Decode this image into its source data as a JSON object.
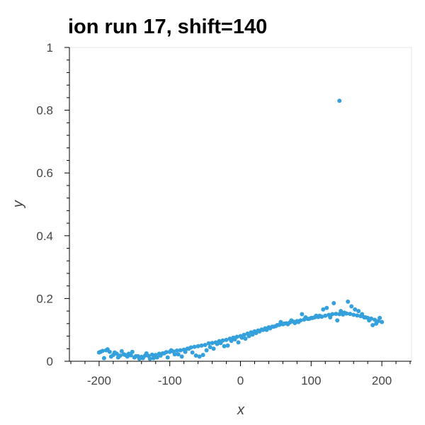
{
  "chart_data": {
    "type": "scatter",
    "title": "ion run 17, shift=140",
    "xlabel": "x",
    "ylabel": "y",
    "xlim": [
      -242,
      242
    ],
    "ylim": [
      0,
      1
    ],
    "x_ticks": [
      -200,
      -100,
      0,
      100,
      200
    ],
    "x_tick_labels": [
      "-200",
      "-100",
      "0",
      "100",
      "200"
    ],
    "y_ticks": [
      0,
      0.2,
      0.4,
      0.6,
      0.8,
      1
    ],
    "y_tick_labels": [
      "0",
      "0.2",
      "0.4",
      "0.6",
      "0.8",
      "1"
    ],
    "grid": false,
    "point_color": "#34a0dc",
    "series": [
      {
        "x": [
          -200,
          -195,
          -190,
          -185,
          -180,
          -175,
          -170,
          -165,
          -160,
          -155,
          -150,
          -145,
          -140,
          -135,
          -130,
          -125,
          -120,
          -115,
          -110,
          -105,
          -100,
          -95,
          -90,
          -85,
          -80,
          -75,
          -70,
          -65,
          -60,
          -55,
          -50,
          -45,
          -40,
          -35,
          -30,
          -25,
          -20,
          -15,
          -10,
          -5,
          0,
          5,
          10,
          15,
          20,
          25,
          30,
          35,
          40,
          45,
          50,
          55,
          60,
          65,
          70,
          75,
          80,
          85,
          90,
          95,
          100,
          105,
          110,
          115,
          120,
          125,
          130,
          135,
          140,
          145,
          150,
          155,
          160,
          165,
          170,
          175,
          180,
          185,
          190,
          195,
          200,
          -198,
          -188,
          -178,
          -168,
          -158,
          -148,
          -138,
          -128,
          -118,
          -108,
          -98,
          -88,
          -78,
          -68,
          -58,
          -48,
          -38,
          -28,
          -18,
          -8,
          2,
          12,
          22,
          32,
          42,
          52,
          62,
          72,
          82,
          92,
          102,
          112,
          122,
          132,
          142,
          152,
          162,
          172,
          182,
          192,
          -193,
          -183,
          -173,
          -163,
          -153,
          -143,
          -133,
          -123,
          -113,
          -103,
          -93,
          -83,
          -73,
          -63,
          -53,
          -43,
          -33,
          -23,
          -13,
          -3,
          7,
          17,
          27,
          37,
          47,
          57,
          67,
          77,
          87,
          97,
          107,
          117,
          127,
          137,
          147,
          157,
          167,
          177,
          187,
          197,
          140
        ],
        "y": [
          0.028,
          0.033,
          0.035,
          0.03,
          0.02,
          0.024,
          0.018,
          0.022,
          0.015,
          0.019,
          0.012,
          0.016,
          0.014,
          0.018,
          0.017,
          0.021,
          0.02,
          0.024,
          0.025,
          0.029,
          0.03,
          0.031,
          0.034,
          0.035,
          0.037,
          0.04,
          0.044,
          0.046,
          0.048,
          0.05,
          0.052,
          0.057,
          0.058,
          0.06,
          0.064,
          0.066,
          0.068,
          0.072,
          0.075,
          0.078,
          0.08,
          0.084,
          0.088,
          0.092,
          0.095,
          0.098,
          0.101,
          0.105,
          0.108,
          0.11,
          0.112,
          0.116,
          0.118,
          0.121,
          0.124,
          0.126,
          0.128,
          0.13,
          0.133,
          0.135,
          0.138,
          0.14,
          0.141,
          0.142,
          0.145,
          0.148,
          0.15,
          0.151,
          0.15,
          0.149,
          0.152,
          0.151,
          0.148,
          0.146,
          0.144,
          0.14,
          0.138,
          0.136,
          0.132,
          0.128,
          0.125,
          0.03,
          0.038,
          0.028,
          0.032,
          0.024,
          0.016,
          0.01,
          0.008,
          0.012,
          0.025,
          0.035,
          0.022,
          0.03,
          0.028,
          0.015,
          0.035,
          0.04,
          0.058,
          0.05,
          0.07,
          0.075,
          0.08,
          0.09,
          0.1,
          0.105,
          0.115,
          0.12,
          0.13,
          0.125,
          0.14,
          0.138,
          0.145,
          0.17,
          0.185,
          0.16,
          0.19,
          0.165,
          0.15,
          0.13,
          0.12,
          0.01,
          0.015,
          0.012,
          0.02,
          0.03,
          0.008,
          0.025,
          0.01,
          0.018,
          0.012,
          0.022,
          0.015,
          0.04,
          0.018,
          0.02,
          0.045,
          0.055,
          0.048,
          0.065,
          0.06,
          0.072,
          0.085,
          0.095,
          0.1,
          0.11,
          0.125,
          0.118,
          0.122,
          0.15,
          0.135,
          0.145,
          0.165,
          0.14,
          0.13,
          0.155,
          0.175,
          0.16,
          0.14,
          0.115,
          0.138,
          0.83
        ]
      }
    ]
  }
}
